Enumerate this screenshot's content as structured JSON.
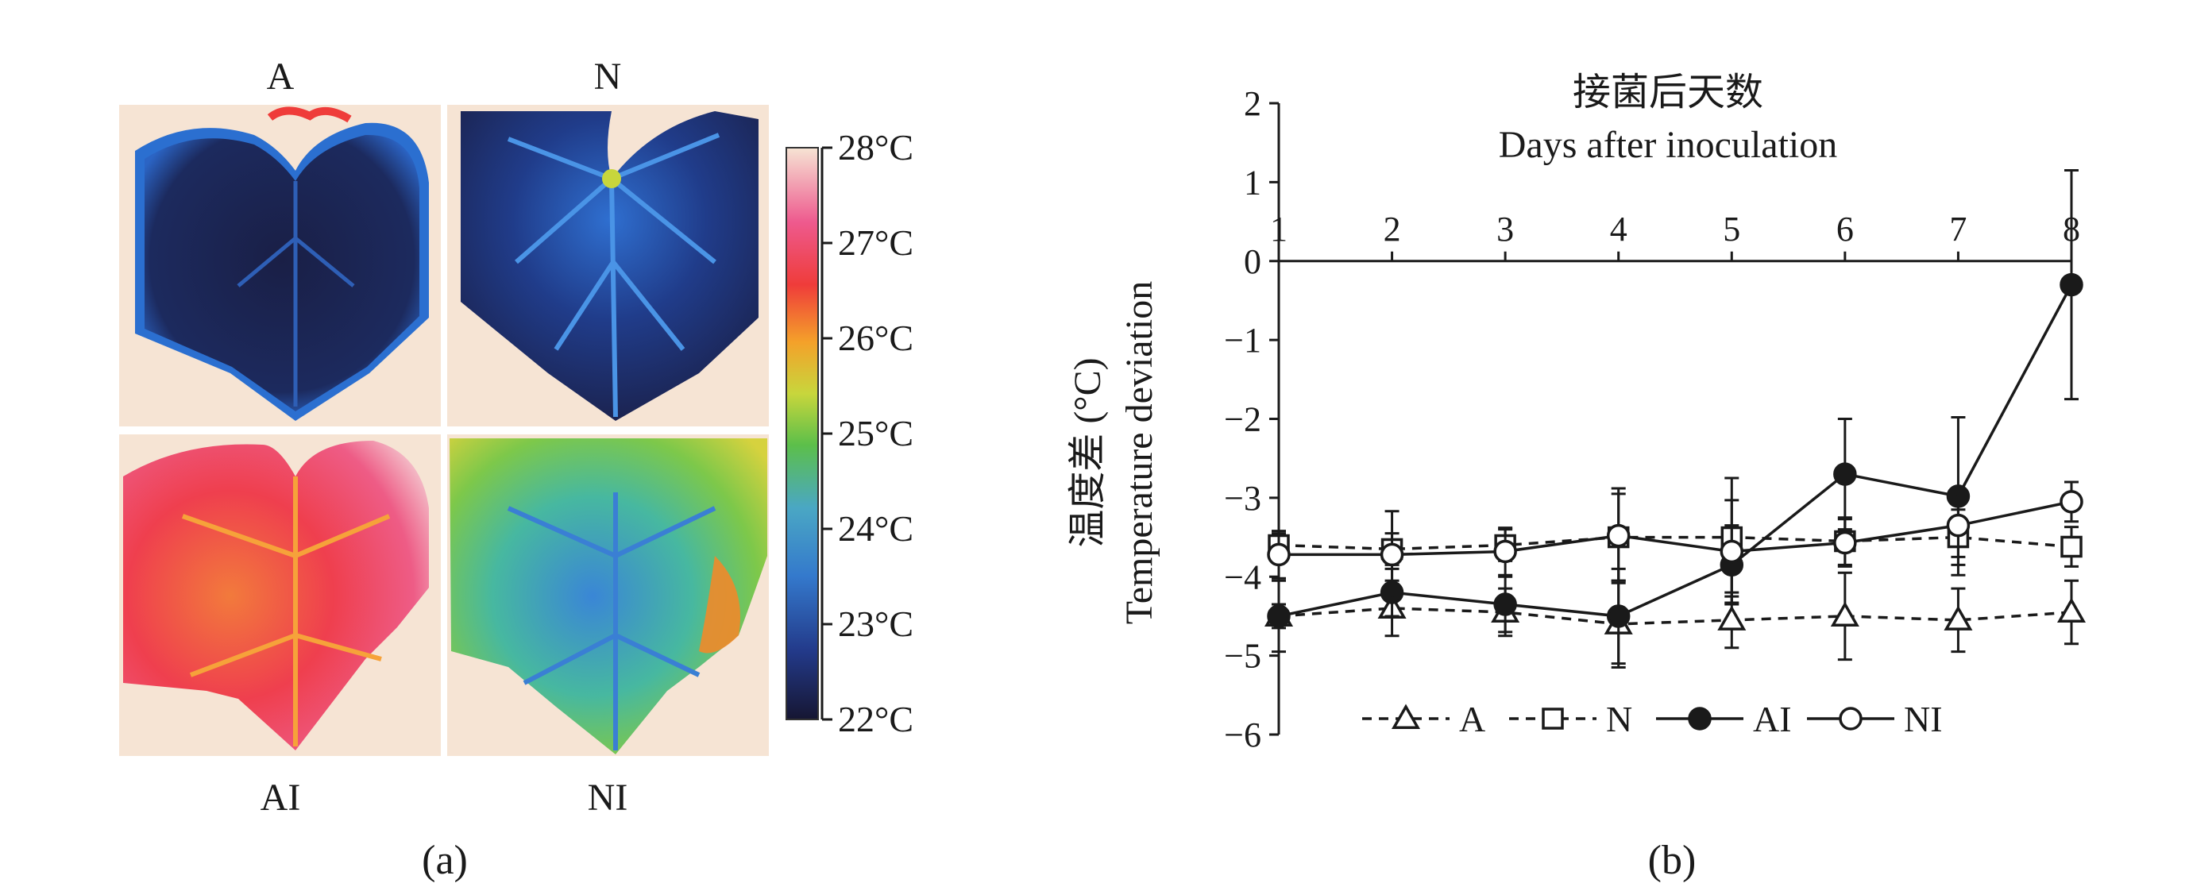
{
  "panel_labels": {
    "a": "(a)",
    "b": "(b)"
  },
  "thermal_images": {
    "top_left_label": "A",
    "top_right_label": "N",
    "bottom_left_label": "AI",
    "bottom_right_label": "NI"
  },
  "colorbar": {
    "ticks": [
      "28°C",
      "27°C",
      "26°C",
      "25°C",
      "24°C",
      "23°C",
      "22°C"
    ],
    "range_celsius": [
      22,
      28
    ],
    "colors": [
      "#1a1a3a",
      "#2a4ea8",
      "#3a8fd0",
      "#5cbf4a",
      "#c8d63c",
      "#f4a12a",
      "#ef3c3a",
      "#ee5a8e",
      "#f6e4d4"
    ]
  },
  "chart_data": {
    "type": "line",
    "title": "接菌后天数",
    "subtitle": "Days after inoculation",
    "xlabel": "接菌后天数 Days after inoculation",
    "ylabel_cn": "温度差 (°C)",
    "ylabel_en": "Temperature deviation",
    "x": [
      1,
      2,
      3,
      4,
      5,
      6,
      7,
      8
    ],
    "xlim": [
      1,
      8
    ],
    "ylim": [
      -6,
      2
    ],
    "yticks": [
      2,
      1,
      0,
      -1,
      -2,
      -3,
      -4,
      -5,
      -6
    ],
    "ytick_labels": [
      "2",
      "1",
      "0",
      "−1",
      "−2",
      "−3",
      "−4",
      "−5",
      "−6"
    ],
    "xtick_labels": [
      "1",
      "2",
      "3",
      "4",
      "5",
      "6",
      "7",
      "8"
    ],
    "x_axis_position": "top (at y = 0)",
    "grid": false,
    "legend_position": "bottom",
    "series": [
      {
        "name": "A",
        "style": "dashed",
        "marker": "open-triangle",
        "values": [
          -4.5,
          -4.4,
          -4.45,
          -4.6,
          -4.55,
          -4.5,
          -4.55,
          -4.45
        ],
        "error": [
          0.15,
          0.35,
          0.3,
          0.55,
          0.35,
          0.55,
          0.4,
          0.4
        ]
      },
      {
        "name": "N",
        "style": "dashed",
        "marker": "open-square",
        "values": [
          -3.6,
          -3.65,
          -3.6,
          -3.5,
          -3.5,
          -3.55,
          -3.5,
          -3.62
        ],
        "error": [
          0.15,
          0.2,
          0.2,
          0.55,
          0.75,
          0.3,
          0.35,
          0.25
        ]
      },
      {
        "name": "AI",
        "style": "solid",
        "marker": "filled-circle",
        "values": [
          -4.5,
          -4.2,
          -4.35,
          -4.5,
          -3.85,
          -2.7,
          -2.98,
          -0.3
        ],
        "error": [
          0.45,
          0.3,
          0.35,
          0.6,
          0.5,
          0.7,
          1.0,
          1.45
        ]
      },
      {
        "name": "NI",
        "style": "solid",
        "marker": "open-circle",
        "values": [
          -3.72,
          -3.72,
          -3.68,
          -3.48,
          -3.68,
          -3.57,
          -3.35,
          -3.05
        ],
        "error": [
          0.3,
          0.55,
          0.3,
          0.6,
          0.65,
          0.3,
          0.4,
          0.25
        ]
      }
    ]
  }
}
